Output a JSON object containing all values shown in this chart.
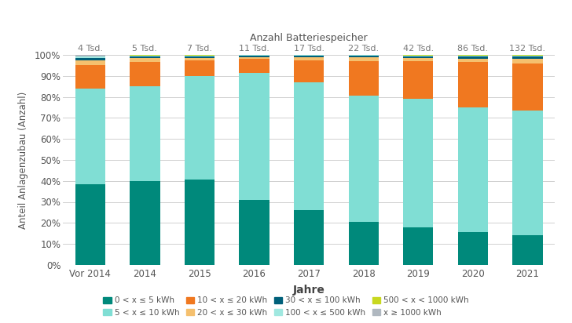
{
  "categories": [
    "Vor 2014",
    "2014",
    "2015",
    "2016",
    "2017",
    "2018",
    "2019",
    "2020",
    "2021"
  ],
  "top_labels": [
    "4 Tsd.",
    "5 Tsd.",
    "7 Tsd.",
    "11 Tsd.",
    "17 Tsd.",
    "22 Tsd.",
    "42 Tsd.",
    "86 Tsd.",
    "132 Tsd."
  ],
  "title": "Anzahl Batteriespeicher",
  "xlabel": "Jahre",
  "ylabel": "Anteil Anlagenzubau (Anzahl)",
  "segments": [
    {
      "label": "0 < x ≤ 5 kWh",
      "color": "#00897b",
      "values": [
        38.5,
        40.0,
        40.5,
        31.0,
        26.0,
        20.5,
        18.0,
        15.5,
        14.0
      ]
    },
    {
      "label": "5 < x ≤ 10 kWh",
      "color": "#80ded4",
      "values": [
        45.5,
        45.0,
        49.5,
        60.5,
        61.0,
        60.0,
        61.0,
        59.5,
        59.5
      ]
    },
    {
      "label": "10 < x ≤ 20 kWh",
      "color": "#f07820",
      "values": [
        11.0,
        11.5,
        7.5,
        6.5,
        10.5,
        16.5,
        18.0,
        21.5,
        22.5
      ]
    },
    {
      "label": "20 < x ≤ 30 kWh",
      "color": "#f5c06e",
      "values": [
        2.5,
        2.0,
        1.0,
        1.0,
        1.5,
        2.0,
        1.5,
        1.5,
        2.0
      ]
    },
    {
      "label": "30 < x ≤ 100 kWh",
      "color": "#00607a",
      "values": [
        1.0,
        0.8,
        0.8,
        0.6,
        0.6,
        0.6,
        0.8,
        1.2,
        1.2
      ]
    },
    {
      "label": "100 < x ≤ 500 kWh",
      "color": "#a0e8e0",
      "values": [
        0.8,
        0.5,
        0.5,
        0.3,
        0.3,
        0.3,
        0.5,
        0.5,
        0.5
      ]
    },
    {
      "label": "500 < x < 1000 kWh",
      "color": "#c8d820",
      "values": [
        0.15,
        0.1,
        0.1,
        0.05,
        0.05,
        0.05,
        0.1,
        0.15,
        0.15
      ]
    },
    {
      "label": "x ≥ 1000 kWh",
      "color": "#b0b8c0",
      "values": [
        0.55,
        0.1,
        0.1,
        0.05,
        0.05,
        0.05,
        0.1,
        0.15,
        0.15
      ]
    }
  ],
  "legend_order": [
    0,
    1,
    2,
    3,
    4,
    5,
    6,
    7
  ],
  "background_color": "#ffffff",
  "grid_color": "#d0d0d0",
  "ylim": [
    0,
    100
  ],
  "yticks": [
    0,
    10,
    20,
    30,
    40,
    50,
    60,
    70,
    80,
    90,
    100
  ],
  "ytick_labels": [
    "0%",
    "10%",
    "20%",
    "30%",
    "40%",
    "50%",
    "60%",
    "70%",
    "80%",
    "90%",
    "100%"
  ]
}
